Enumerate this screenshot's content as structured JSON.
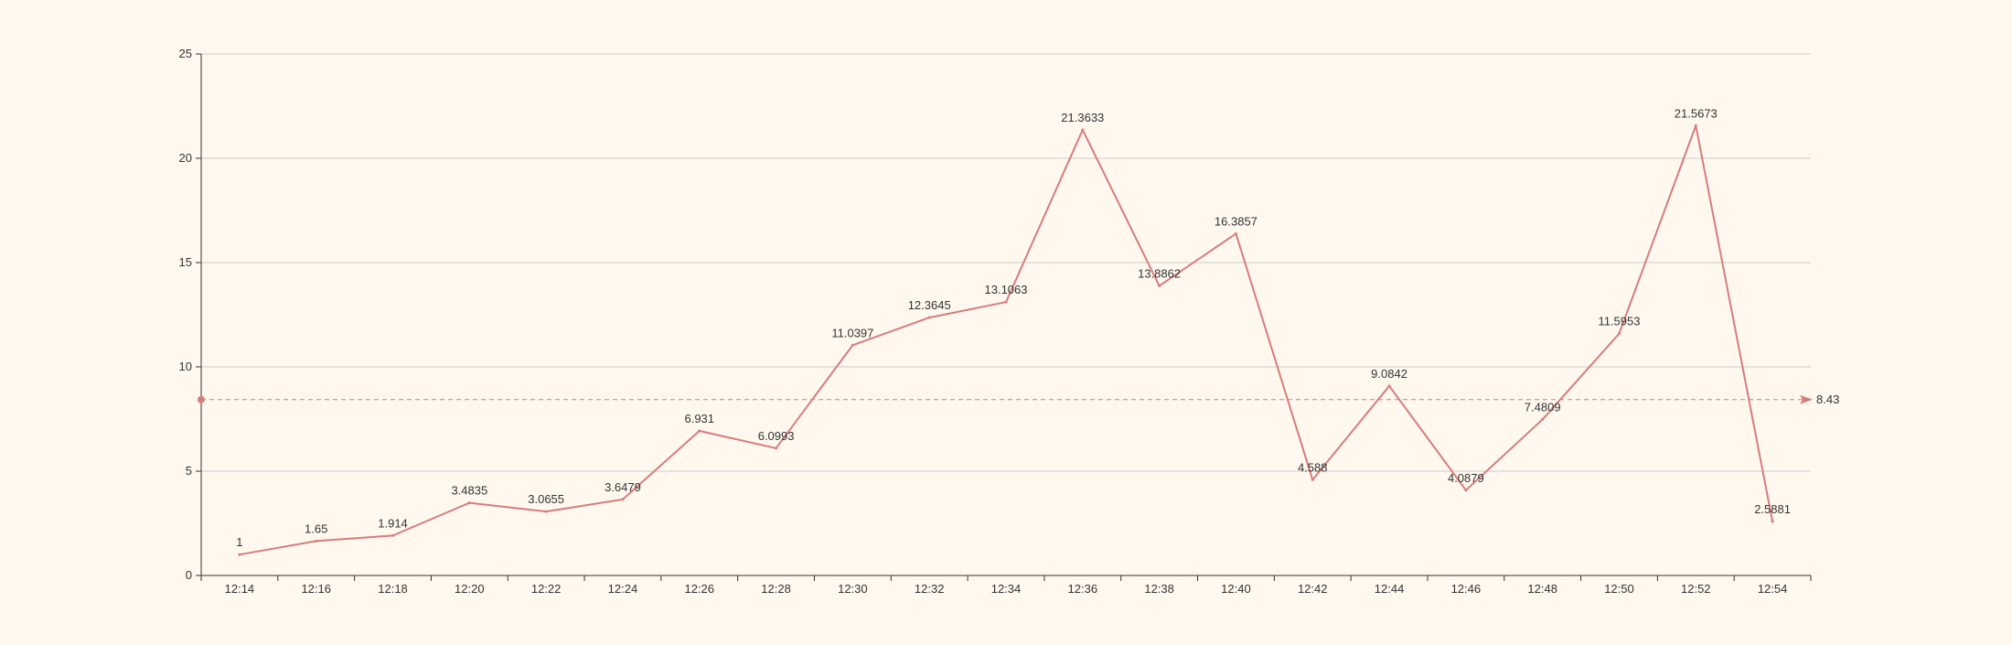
{
  "chart_data": {
    "type": "line",
    "x": [
      "12:14",
      "12:16",
      "12:18",
      "12:20",
      "12:22",
      "12:24",
      "12:26",
      "12:28",
      "12:30",
      "12:32",
      "12:34",
      "12:36",
      "12:38",
      "12:40",
      "12:42",
      "12:44",
      "12:46",
      "12:48",
      "12:50",
      "12:52",
      "12:54"
    ],
    "series": [
      {
        "values": [
          1,
          1.65,
          1.914,
          3.4835,
          3.0655,
          3.6479,
          6.931,
          6.0993,
          11.0397,
          12.3645,
          13.1063,
          21.3633,
          13.8862,
          16.3857,
          4.588,
          9.0842,
          4.0879,
          7.4809,
          11.5953,
          21.5673,
          2.5881
        ],
        "labels": [
          "1",
          "1.65",
          "1.914",
          "3.4835",
          "3.0655",
          "3.6479",
          "6.931",
          "6.0993",
          "11.0397",
          "12.3645",
          "13.1063",
          "21.3633",
          "13.8862",
          "16.3857",
          "4.588",
          "9.0842",
          "4.0879",
          "7.4809",
          "11.5953",
          "21.5673",
          "2.5881"
        ]
      }
    ],
    "ylim": [
      0,
      25
    ],
    "yticks": [
      "0",
      "5",
      "10",
      "15",
      "20",
      "25"
    ],
    "yticks_values": [
      0,
      5,
      10,
      15,
      20,
      25
    ],
    "grid": true,
    "mark_line": {
      "value": 8.43,
      "label": "8.43"
    },
    "colors": {
      "background": "#fef8ef",
      "series": "#d87c7c",
      "axis": "#333333",
      "grid": "#cccccc",
      "text": "#333333"
    }
  }
}
